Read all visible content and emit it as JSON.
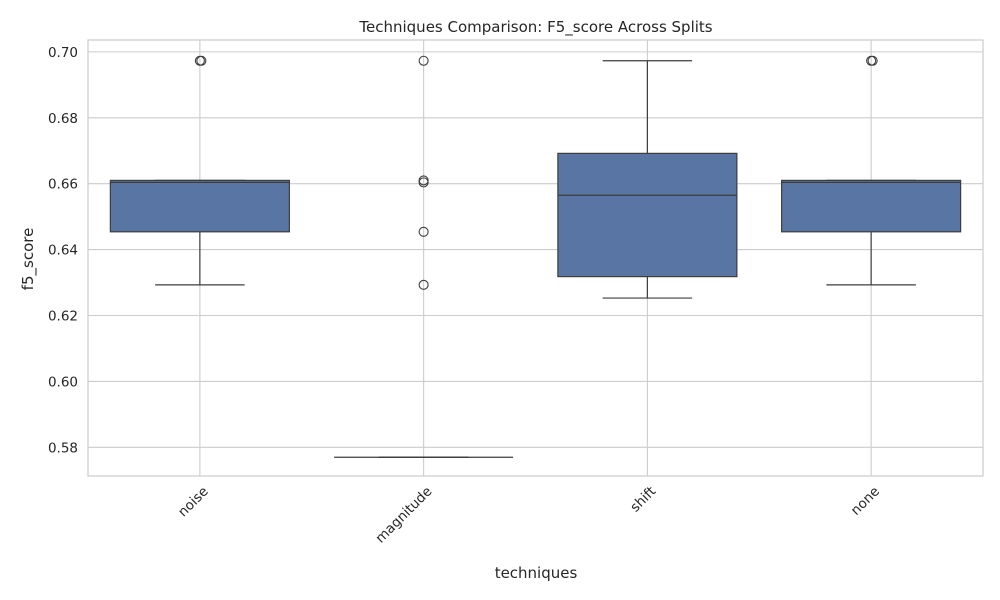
{
  "chart_data": {
    "type": "box",
    "title": "Techniques Comparison: F5_score Across Splits",
    "xlabel": "techniques",
    "ylabel": "f5_score",
    "ylim": [
      0.5713,
      0.7036
    ],
    "yticks": [
      "0.58",
      "0.60",
      "0.62",
      "0.64",
      "0.66",
      "0.68",
      "0.70"
    ],
    "ytick_values": [
      0.58,
      0.6,
      0.62,
      0.64,
      0.66,
      0.68,
      0.7
    ],
    "grid": true,
    "box_color": "#5975a4",
    "edge_color": "#3d3d3d",
    "categories": [
      "noise",
      "magnitude",
      "shift",
      "none"
    ],
    "boxes": [
      {
        "category": "noise",
        "whisker_low": 0.6293,
        "q1": 0.6454,
        "median": 0.6604,
        "q3": 0.661,
        "whisker_high": 0.661,
        "fliers": [
          0.6973,
          0.6973
        ]
      },
      {
        "category": "magnitude",
        "whisker_low": 0.577,
        "q1": 0.577,
        "median": 0.577,
        "q3": 0.577,
        "whisker_high": 0.577,
        "fliers": [
          0.6973,
          0.661,
          0.6604,
          0.6454,
          0.6293
        ]
      },
      {
        "category": "shift",
        "whisker_low": 0.6253,
        "q1": 0.6318,
        "median": 0.6565,
        "q3": 0.6692,
        "whisker_high": 0.6973,
        "fliers": []
      },
      {
        "category": "none",
        "whisker_low": 0.6293,
        "q1": 0.6454,
        "median": 0.6604,
        "q3": 0.661,
        "whisker_high": 0.661,
        "fliers": [
          0.6973,
          0.6973
        ]
      }
    ]
  }
}
